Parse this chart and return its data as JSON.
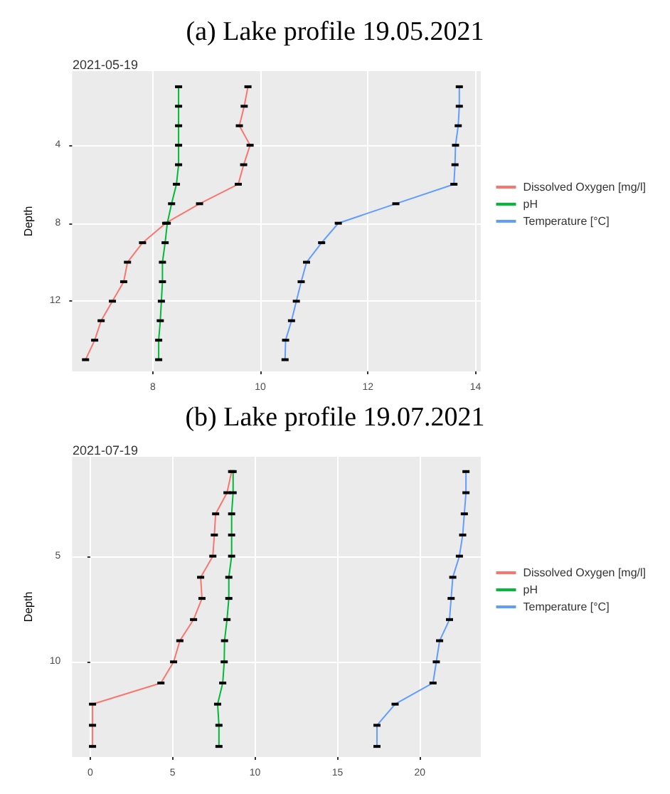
{
  "chart_data": [
    {
      "type": "line",
      "title": "(a) Lake profile 19.05.2021",
      "subtitle": "2021-05-19",
      "ylabel": "Depth",
      "xlim": [
        6.5,
        14.1
      ],
      "xticks": [
        8,
        10,
        12,
        14
      ],
      "ylim": [
        15.6,
        0.2
      ],
      "yticks": [
        4,
        8,
        12
      ],
      "grid": true,
      "legend": "right",
      "marker": "square",
      "line_style": "solid",
      "series": [
        {
          "name": "Dissolved Oxygen [mg/l]",
          "color": "#f8766d",
          "x": [
            9.77,
            9.7,
            9.61,
            9.81,
            9.69,
            9.59,
            8.87,
            8.24,
            7.81,
            7.53,
            7.46,
            7.25,
            7.04,
            6.92,
            6.75
          ],
          "values": [
            1,
            2,
            3,
            4,
            5,
            6,
            7,
            8,
            9,
            10,
            11,
            12,
            13,
            14,
            15
          ]
        },
        {
          "name": "pH",
          "color": "#00ba38",
          "x": [
            8.48,
            8.48,
            8.48,
            8.48,
            8.48,
            8.44,
            8.35,
            8.27,
            8.23,
            8.18,
            8.18,
            8.16,
            8.14,
            8.11,
            8.11
          ],
          "values": [
            1,
            2,
            3,
            4,
            5,
            6,
            7,
            8,
            9,
            10,
            11,
            12,
            13,
            14,
            15
          ]
        },
        {
          "name": "Temperature [°C]",
          "color": "#619cff",
          "x": [
            13.7,
            13.7,
            13.68,
            13.63,
            13.62,
            13.6,
            12.52,
            11.45,
            11.14,
            10.86,
            10.76,
            10.67,
            10.58,
            10.47,
            10.46
          ],
          "values": [
            1,
            2,
            3,
            4,
            5,
            6,
            7,
            8,
            9,
            10,
            11,
            12,
            13,
            14,
            15
          ]
        }
      ]
    },
    {
      "type": "line",
      "title": "(b) Lake profile 19.07.2021",
      "subtitle": "2021-07-19",
      "ylabel": "Depth",
      "xlim": [
        -1.1,
        23.7
      ],
      "xticks": [
        0,
        5,
        10,
        15,
        20
      ],
      "ylim": [
        14.5,
        0.3
      ],
      "yticks": [
        5,
        10
      ],
      "grid": true,
      "legend": "right",
      "marker": "square",
      "line_style": "solid",
      "series": [
        {
          "name": "Dissolved Oxygen [mg/l]",
          "color": "#f8766d",
          "x": [
            8.58,
            8.3,
            7.61,
            7.53,
            7.44,
            6.7,
            6.78,
            6.27,
            5.44,
            5.06,
            4.29,
            0.14,
            0.14,
            0.14
          ],
          "values": [
            1,
            2,
            3,
            4,
            5,
            6,
            7,
            8,
            9,
            10,
            11,
            12,
            13,
            14
          ]
        },
        {
          "name": "pH",
          "color": "#00ba38",
          "x": [
            8.67,
            8.67,
            8.58,
            8.58,
            8.58,
            8.41,
            8.41,
            8.3,
            8.15,
            8.13,
            8.04,
            7.73,
            7.81,
            7.81
          ],
          "values": [
            1,
            2,
            3,
            4,
            5,
            6,
            7,
            8,
            9,
            10,
            11,
            12,
            13,
            14
          ]
        },
        {
          "name": "Temperature [°C]",
          "color": "#619cff",
          "x": [
            22.8,
            22.8,
            22.7,
            22.6,
            22.4,
            22.0,
            21.9,
            21.8,
            21.2,
            21.0,
            20.8,
            18.5,
            17.4,
            17.4
          ],
          "values": [
            1,
            2,
            3,
            4,
            5,
            6,
            7,
            8,
            9,
            10,
            11,
            12,
            13,
            14
          ]
        }
      ]
    }
  ]
}
